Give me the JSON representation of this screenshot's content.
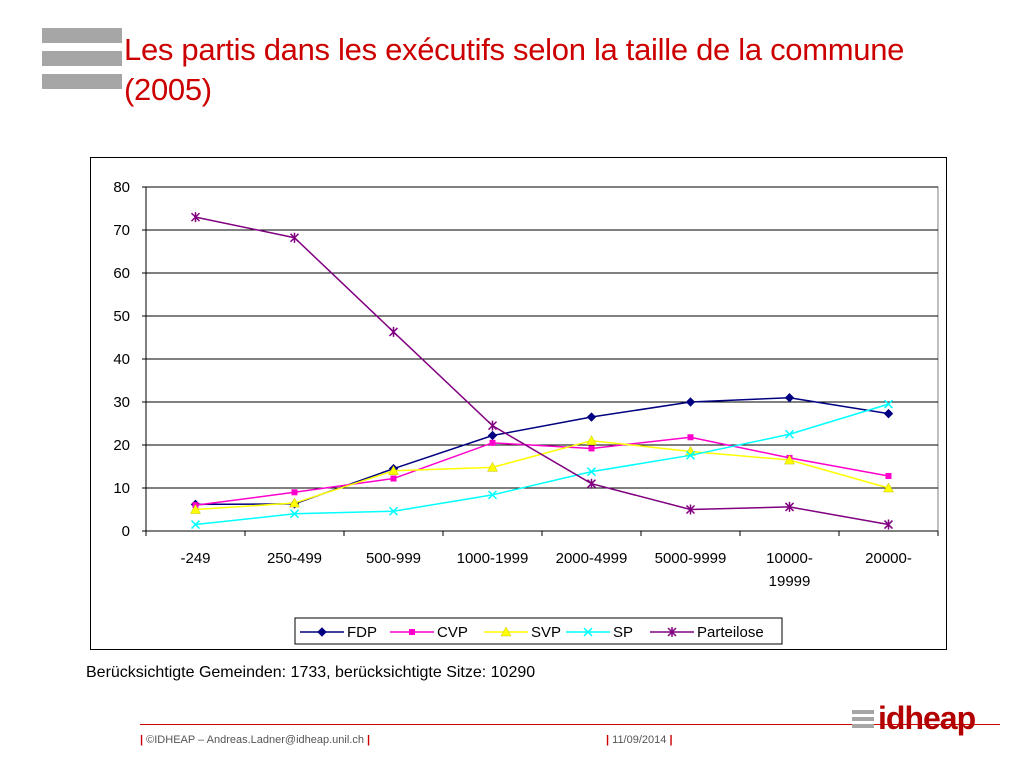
{
  "slide": {
    "title": "Les partis dans les exécutifs selon la taille de la commune (2005)",
    "caption": "Berücksichtigte Gemeinden: 1733, berücksichtigte Sitze: 10290",
    "footer_left": "©IDHEAP – Andreas.Ladner@idheap.unil.ch",
    "footer_date": "11/09/2014",
    "brand": "idheap",
    "accent_color": "#cc0000"
  },
  "chart_data": {
    "type": "line",
    "title": "",
    "xlabel": "",
    "ylabel": "",
    "ylim": [
      0,
      80
    ],
    "yticks": [
      0,
      10,
      20,
      30,
      40,
      50,
      60,
      70,
      80
    ],
    "grid": true,
    "legend_position": "bottom",
    "categories": [
      "-249",
      "250-499",
      "500-999",
      "1000-1999",
      "2000-4999",
      "5000-9999",
      "10000-19999",
      "20000-"
    ],
    "category_lines": [
      [
        "-249"
      ],
      [
        "250-499"
      ],
      [
        "500-999"
      ],
      [
        "1000-1999"
      ],
      [
        "2000-4999"
      ],
      [
        "5000-9999"
      ],
      [
        "10000-",
        "19999"
      ],
      [
        "20000-"
      ]
    ],
    "series": [
      {
        "name": "FDP",
        "color": "#000080",
        "marker": "diamond",
        "values": [
          6.2,
          6.3,
          14.5,
          22.2,
          26.5,
          30.0,
          31.0,
          27.3
        ]
      },
      {
        "name": "CVP",
        "color": "#ff00cc",
        "marker": "square",
        "values": [
          6.0,
          9.0,
          12.2,
          20.5,
          19.2,
          21.8,
          17.0,
          12.8
        ]
      },
      {
        "name": "SVP",
        "color": "#ffff00",
        "marker": "triangle",
        "values": [
          5.0,
          6.5,
          14.0,
          14.8,
          21.0,
          18.5,
          16.5,
          10.0
        ]
      },
      {
        "name": "SP",
        "color": "#00ffff",
        "marker": "x",
        "values": [
          1.5,
          4.0,
          4.6,
          8.4,
          13.8,
          17.6,
          22.5,
          29.5
        ]
      },
      {
        "name": "Parteilose",
        "color": "#800080",
        "marker": "star",
        "values": [
          73.0,
          68.2,
          46.3,
          24.5,
          11.0,
          5.0,
          5.6,
          1.5
        ]
      }
    ]
  }
}
